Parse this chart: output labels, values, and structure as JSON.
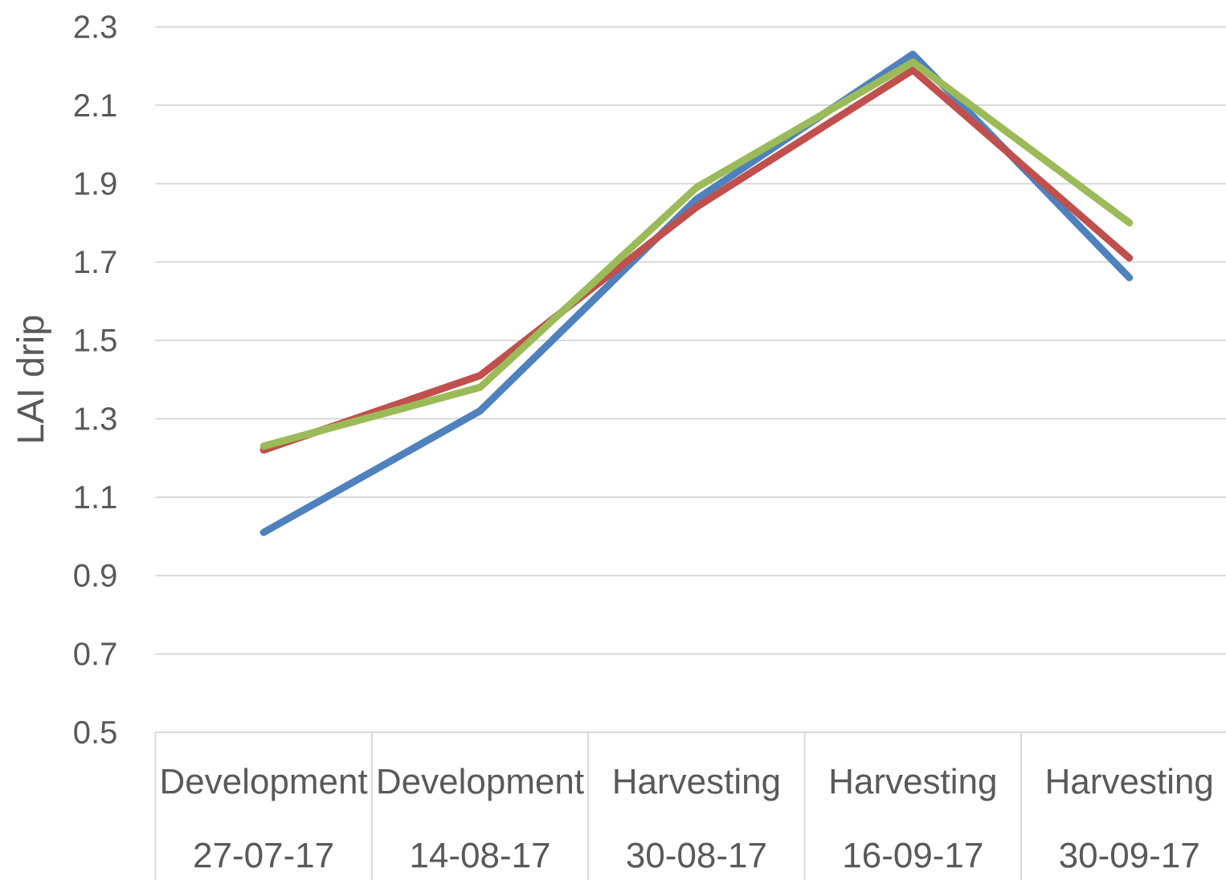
{
  "chart_data": {
    "type": "line",
    "ylabel": "LAI drip",
    "categories": [
      "Development 27-07-17",
      "Development 14-08-17",
      "Harvesting 30-08-17",
      "Harvesting 16-09-17",
      "Harvesting 30-09-17"
    ],
    "series": [
      {
        "color": "#4f81bd",
        "values": [
          1.01,
          1.32,
          1.86,
          2.23,
          1.66
        ]
      },
      {
        "color": "#c0504d",
        "values": [
          1.22,
          1.41,
          1.84,
          2.19,
          1.71
        ]
      },
      {
        "color": "#9bbb59",
        "values": [
          1.23,
          1.38,
          1.89,
          2.21,
          1.8
        ]
      }
    ],
    "ylim": [
      0.5,
      2.3
    ],
    "yticks": [
      0.5,
      0.7,
      0.9,
      1.1,
      1.3,
      1.5,
      1.7,
      1.9,
      2.1,
      2.3
    ],
    "grid": "y",
    "legend": false,
    "marker": "none",
    "line_style": "solid"
  }
}
